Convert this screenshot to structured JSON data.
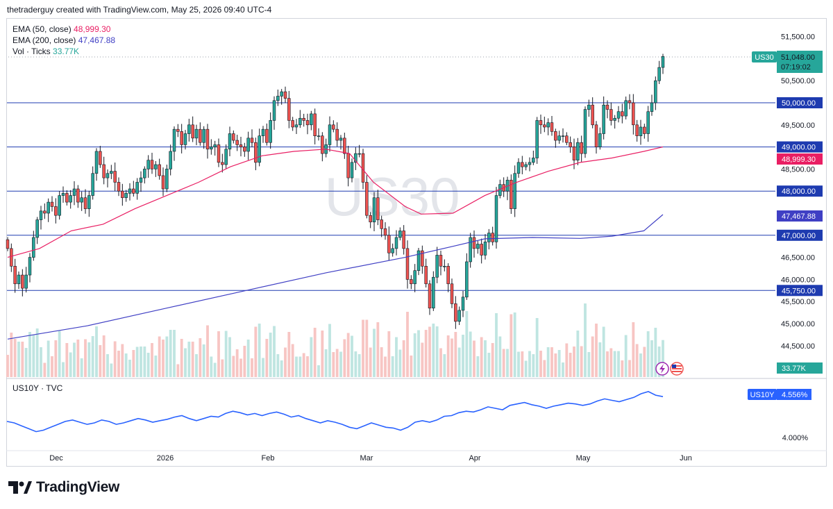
{
  "header": {
    "text": "thetraderguy created with TradingView.com, May 25, 2026 09:40 UTC-4"
  },
  "legend": {
    "ema50": {
      "name": "EMA (50, close)",
      "value": "48,999.30",
      "color": "#e91e63"
    },
    "ema200": {
      "name": "EMA (200, close)",
      "value": "47,467.88",
      "color": "#3f3fc4"
    },
    "vol": {
      "name": "Vol · Ticks",
      "value": "33.77K",
      "color": "#26a69a"
    }
  },
  "watermark": "US30",
  "symbol_tag": "US30",
  "price_tag": {
    "price": "51,048.00",
    "countdown": "07:19:02"
  },
  "sub_legend": "US10Y · TVC",
  "us10y_tag": {
    "symbol": "US10Y",
    "value": "4.556%"
  },
  "brand": "TradingView",
  "icons": [
    "lightning-icon",
    "us-flag-icon",
    "tradingview-logo-icon"
  ],
  "colors": {
    "up": "#26a69a",
    "down": "#ef5350",
    "up_volume": "#bfe5e1",
    "down_volume": "#f7c5c3",
    "levels": "#1e3bb0",
    "us10y": "#2962ff"
  },
  "chart_data": [
    {
      "type": "candlestick",
      "symbol": "US30",
      "y_axis_ticks": [
        "51,500.00",
        "50,500.00",
        "49,500.00",
        "48,500.00",
        "46,500.00",
        "46,000.00",
        "45,500.00",
        "45,000.00",
        "44,500.00"
      ],
      "y_axis_range": [
        44300,
        51700
      ],
      "x_axis_labels": [
        "Dec",
        "2026",
        "Feb",
        "Mar",
        "Apr",
        "May",
        "Jun"
      ],
      "horizontal_levels": [
        {
          "value": 50000,
          "label": "50,000.00"
        },
        {
          "value": 49000,
          "label": "49,000.00"
        },
        {
          "value": 48000,
          "label": "48,000.00"
        },
        {
          "value": 47000,
          "label": "47,000.00"
        },
        {
          "value": 45750,
          "label": "45,750.00"
        }
      ],
      "close_series": [
        46700,
        46300,
        45900,
        46100,
        45800,
        46100,
        46500,
        46950,
        47350,
        47550,
        47500,
        47750,
        47650,
        47450,
        47900,
        47950,
        47750,
        47900,
        48050,
        47750,
        47850,
        47600,
        47900,
        48400,
        48900,
        48600,
        48300,
        48400,
        48450,
        48200,
        48000,
        47850,
        47950,
        48050,
        47950,
        48200,
        48300,
        48500,
        48700,
        48500,
        48600,
        48350,
        48050,
        48500,
        48900,
        49400,
        49350,
        49050,
        49300,
        49500,
        49200,
        49400,
        49100,
        49400,
        48950,
        49000,
        49050,
        48650,
        48600,
        48950,
        49300,
        49150,
        49050,
        49000,
        48900,
        49200,
        49100,
        48650,
        49250,
        49400,
        49100,
        49600,
        50050,
        50150,
        50250,
        50100,
        49600,
        49450,
        49500,
        49650,
        49600,
        49500,
        49750,
        49250,
        49250,
        48850,
        49050,
        49500,
        49400,
        49150,
        49200,
        48850,
        48300,
        48650,
        48850,
        48850,
        48200,
        47450,
        47300,
        47850,
        47350,
        47150,
        47000,
        46600,
        46700,
        46950,
        47100,
        46700,
        46000,
        45900,
        46200,
        46650,
        46300,
        45900,
        45350,
        46050,
        46550,
        46300,
        46300,
        45900,
        45450,
        45050,
        45300,
        45600,
        46400,
        46950,
        46700,
        46800,
        46550,
        46850,
        47050,
        46850,
        47900,
        48150,
        48000,
        48250,
        47600,
        48400,
        48650,
        48550,
        48600,
        48650,
        48750,
        49600,
        49500,
        49450,
        49550,
        49350,
        49150,
        49250,
        49250,
        49100,
        49000,
        48700,
        49100,
        48850,
        49850,
        49950,
        49500,
        49000,
        49300,
        49950,
        49850,
        49600,
        49650,
        49800,
        49700,
        50050,
        50000,
        49500,
        49250,
        49450,
        49300,
        49800,
        50000,
        50500,
        50800,
        51048
      ],
      "ema_50": {
        "start": 46500,
        "points": [
          [
            0,
            46500
          ],
          [
            20,
            46700
          ],
          [
            40,
            47100
          ],
          [
            60,
            47250
          ],
          [
            80,
            47600
          ],
          [
            100,
            47900
          ],
          [
            120,
            48200
          ],
          [
            140,
            48550
          ],
          [
            160,
            48800
          ],
          [
            180,
            48900
          ],
          [
            200,
            48950
          ],
          [
            215,
            48850
          ],
          [
            230,
            48200
          ],
          [
            250,
            47650
          ],
          [
            260,
            47480
          ],
          [
            280,
            47500
          ],
          [
            300,
            47900
          ],
          [
            320,
            48200
          ],
          [
            340,
            48450
          ],
          [
            360,
            48650
          ],
          [
            380,
            48750
          ],
          [
            400,
            48900
          ],
          [
            412,
            48999.3
          ]
        ]
      },
      "ema_200": {
        "points": [
          [
            0,
            44650
          ],
          [
            50,
            44950
          ],
          [
            100,
            45350
          ],
          [
            150,
            45750
          ],
          [
            200,
            46150
          ],
          [
            250,
            46500
          ],
          [
            280,
            46750
          ],
          [
            300,
            46920
          ],
          [
            330,
            46950
          ],
          [
            360,
            46930
          ],
          [
            380,
            46980
          ],
          [
            400,
            47100
          ],
          [
            412,
            47467.88
          ]
        ]
      },
      "last_price": "51,048.00",
      "ema_50_last": "48,999.30",
      "ema_200_last": "47,467.88",
      "volume_last": "33.77K"
    },
    {
      "type": "line",
      "symbol": "US10Y",
      "source": "TVC",
      "y_axis_ticks": [
        "4.000%"
      ],
      "last_value": "4.556%",
      "values": [
        4.22,
        4.2,
        4.16,
        4.12,
        4.08,
        4.1,
        4.14,
        4.18,
        4.22,
        4.24,
        4.21,
        4.18,
        4.2,
        4.24,
        4.22,
        4.18,
        4.2,
        4.23,
        4.26,
        4.24,
        4.21,
        4.23,
        4.25,
        4.28,
        4.3,
        4.26,
        4.23,
        4.26,
        4.29,
        4.28,
        4.33,
        4.36,
        4.34,
        4.31,
        4.33,
        4.3,
        4.33,
        4.35,
        4.32,
        4.28,
        4.3,
        4.26,
        4.23,
        4.2,
        4.23,
        4.21,
        4.18,
        4.14,
        4.12,
        4.16,
        4.2,
        4.17,
        4.14,
        4.13,
        4.1,
        4.14,
        4.21,
        4.23,
        4.21,
        4.24,
        4.29,
        4.3,
        4.34,
        4.36,
        4.35,
        4.38,
        4.42,
        4.4,
        4.38,
        4.44,
        4.46,
        4.48,
        4.45,
        4.43,
        4.4,
        4.43,
        4.45,
        4.47,
        4.46,
        4.44,
        4.46,
        4.5,
        4.53,
        4.51,
        4.49,
        4.52,
        4.55,
        4.6,
        4.63,
        4.58,
        4.56
      ]
    }
  ]
}
